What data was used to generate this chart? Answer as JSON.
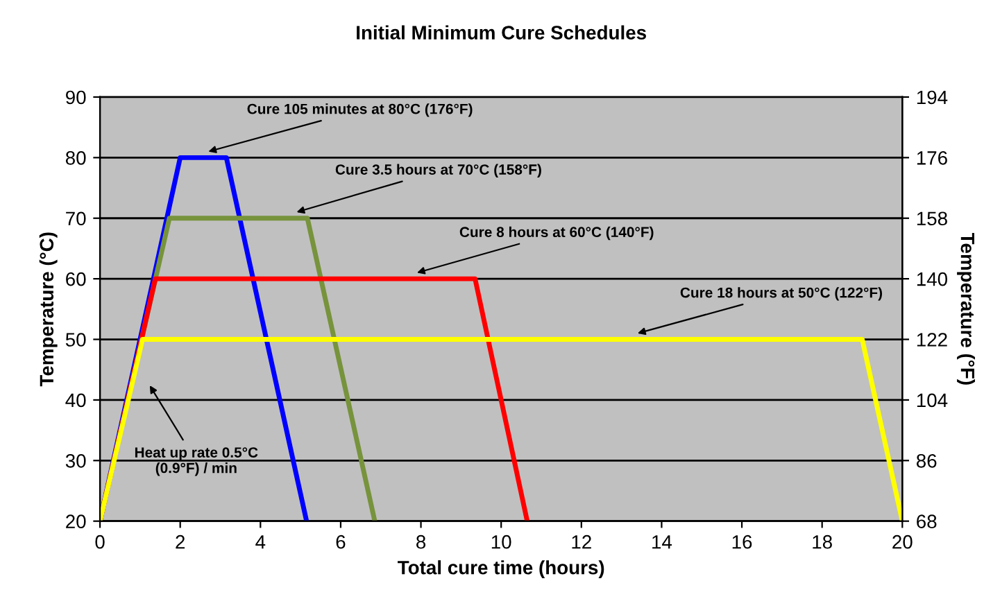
{
  "chart_data": {
    "type": "line",
    "title": "Initial Minimum Cure Schedules",
    "xlabel": "Total cure time (hours)",
    "ylabel": "Temperature (°C)",
    "y2label": "Temperature (°F)",
    "series": [
      {
        "color": "#0000ff",
        "x": [
          0,
          2.0,
          3.15,
          5.15
        ],
        "values": [
          20,
          80,
          80,
          20
        ]
      },
      {
        "color": "#77933c",
        "x": [
          0,
          1.73,
          5.17,
          6.85
        ],
        "values": [
          20,
          70,
          70,
          20
        ]
      },
      {
        "color": "#ff0000",
        "x": [
          0,
          1.38,
          9.35,
          10.65
        ],
        "values": [
          20,
          60,
          60,
          20
        ]
      },
      {
        "color": "#ffff00",
        "x": [
          0,
          1.06,
          19.0,
          20
        ],
        "values": [
          20,
          50,
          50,
          20
        ]
      }
    ],
    "annotations": [
      {
        "text": "Cure 105 minutes at 80°C (176°F)",
        "x": 2.7,
        "y": 81
      },
      {
        "text": "Cure 3.5 hours at 70°C (158°F)",
        "x": 4.9,
        "y": 71
      },
      {
        "text": "Cure 8 hours at 60°C (140°F)",
        "x": 7.9,
        "y": 61
      },
      {
        "text": "Cure 18 hours at 50°C (122°F)",
        "x": 13.4,
        "y": 51
      },
      "Heat up rate 0.5°C\n(0.9°F) / min"
    ],
    "xlim": [
      0,
      20
    ],
    "xticks": [
      0,
      2,
      4,
      6,
      8,
      10,
      12,
      14,
      16,
      18,
      20
    ],
    "ylim": [
      20,
      90
    ],
    "yticks": [
      20,
      30,
      40,
      50,
      60,
      70,
      80,
      90
    ],
    "y2lim": [
      68,
      194
    ],
    "y2ticks": [
      68,
      86,
      104,
      122,
      140,
      158,
      176,
      194
    ],
    "grid": "y",
    "legend": false,
    "marker": "none",
    "line_style": "solid"
  }
}
